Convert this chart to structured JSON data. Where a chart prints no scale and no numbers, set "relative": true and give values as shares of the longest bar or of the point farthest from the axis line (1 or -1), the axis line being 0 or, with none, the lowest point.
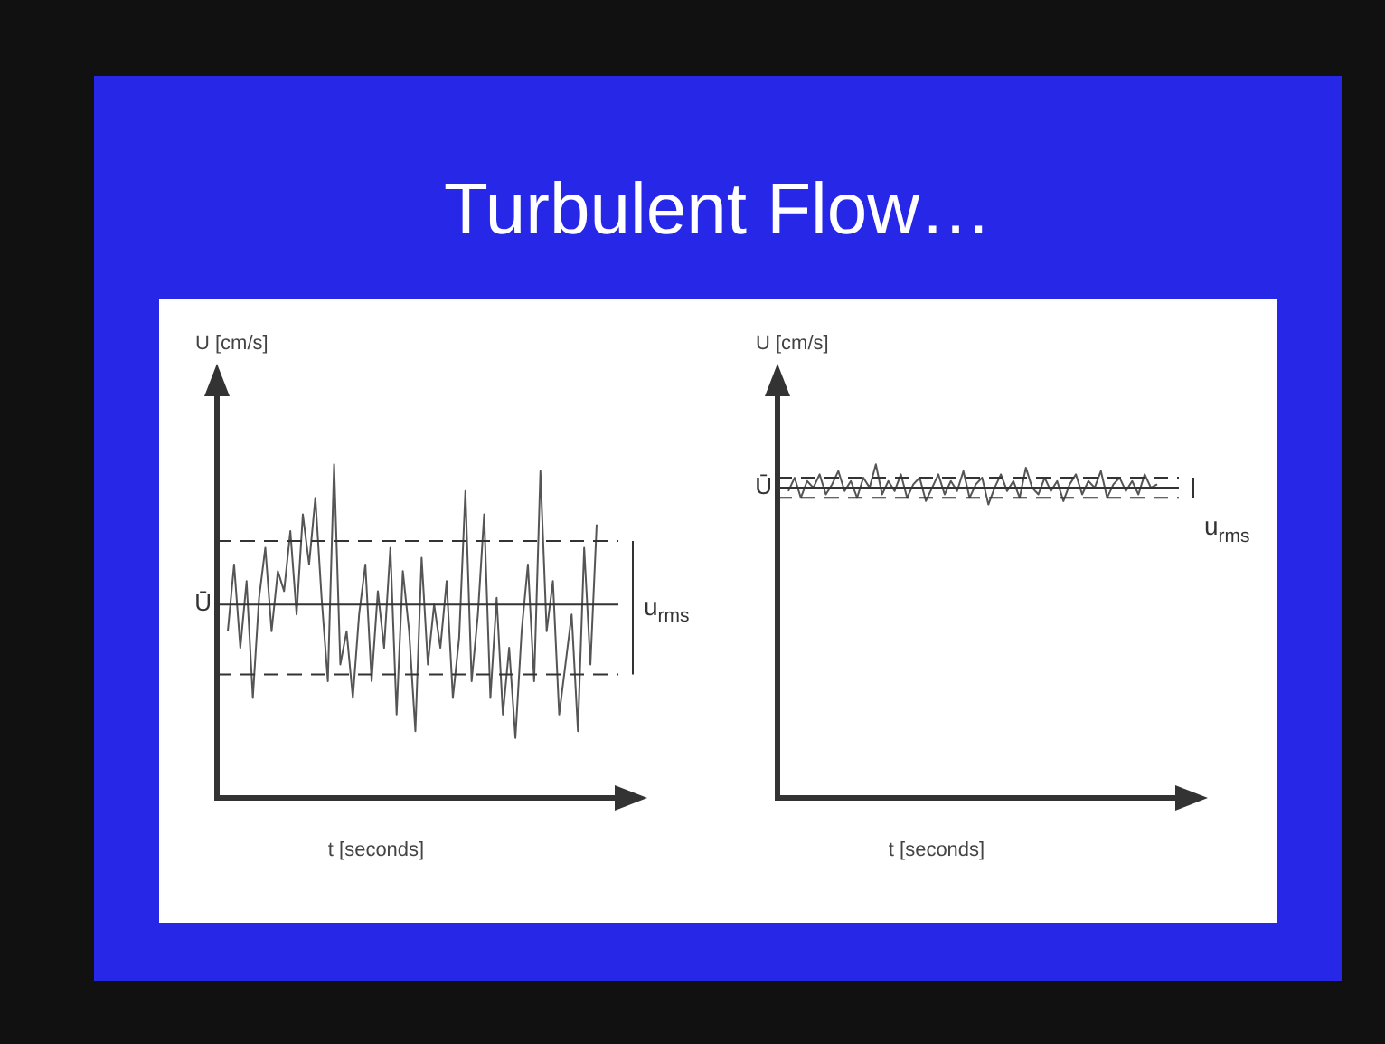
{
  "chart_data": [
    {
      "type": "line",
      "title": "Turbulent Flow…",
      "xlabel": "t [seconds]",
      "ylabel": "U [cm/s]",
      "relative": true,
      "color": "#555555",
      "categories": [
        null,
        null,
        null,
        null,
        null,
        null,
        null,
        null,
        null,
        null,
        null,
        null,
        null,
        null,
        null,
        null,
        null,
        null,
        null,
        null,
        null,
        null,
        null,
        null,
        null,
        null,
        null,
        null,
        null,
        null,
        null,
        null,
        null,
        null,
        null,
        null,
        null,
        null,
        null,
        null,
        null,
        null,
        null,
        null,
        null,
        null,
        null,
        null,
        null,
        null,
        null,
        null,
        null,
        null,
        null,
        null,
        null,
        null,
        null,
        null
      ],
      "values": [
        0.5,
        0.7,
        0.45,
        0.65,
        0.3,
        0.6,
        0.75,
        0.5,
        0.68,
        0.62,
        0.8,
        0.55,
        0.85,
        0.7,
        0.9,
        0.6,
        0.35,
        1.0,
        0.4,
        0.5,
        0.3,
        0.55,
        0.7,
        0.35,
        0.62,
        0.45,
        0.75,
        0.25,
        0.68,
        0.5,
        0.2,
        0.72,
        0.4,
        0.58,
        0.45,
        0.65,
        0.3,
        0.48,
        0.92,
        0.35,
        0.55,
        0.85,
        0.3,
        0.6,
        0.25,
        0.45,
        0.18,
        0.5,
        0.7,
        0.35,
        0.98,
        0.5,
        0.65,
        0.25,
        0.4,
        0.55,
        0.2,
        0.75,
        0.4,
        0.82
      ],
      "ref_lines": [
        {
          "axis": "y",
          "value": 0.58,
          "label": "Ū",
          "line_style": "solid"
        },
        {
          "axis": "y",
          "value": 0.77,
          "line_style": "dashed"
        },
        {
          "axis": "y",
          "value": 0.37,
          "line_style": "dashed"
        }
      ],
      "annotations": [
        "u$_{rms}$"
      ]
    },
    {
      "type": "line",
      "xlabel": "t [seconds]",
      "ylabel": "U [cm/s]",
      "relative": true,
      "color": "#555555",
      "categories": [
        null,
        null,
        null,
        null,
        null,
        null,
        null,
        null,
        null,
        null,
        null,
        null,
        null,
        null,
        null,
        null,
        null,
        null,
        null,
        null,
        null,
        null,
        null,
        null,
        null,
        null,
        null,
        null,
        null,
        null,
        null,
        null,
        null,
        null,
        null,
        null,
        null,
        null,
        null,
        null,
        null,
        null,
        null,
        null,
        null,
        null,
        null,
        null,
        null,
        null,
        null,
        null,
        null,
        null,
        null,
        null,
        null,
        null,
        null,
        null
      ],
      "values": [
        0.92,
        0.96,
        0.9,
        0.95,
        0.93,
        0.97,
        0.91,
        0.94,
        0.98,
        0.92,
        0.95,
        0.9,
        0.96,
        0.93,
        1.0,
        0.91,
        0.95,
        0.92,
        0.97,
        0.9,
        0.94,
        0.96,
        0.89,
        0.93,
        0.97,
        0.91,
        0.95,
        0.92,
        0.98,
        0.9,
        0.94,
        0.96,
        0.88,
        0.93,
        0.97,
        0.92,
        0.95,
        0.9,
        0.99,
        0.93,
        0.91,
        0.96,
        0.92,
        0.95,
        0.89,
        0.94,
        0.97,
        0.91,
        0.95,
        0.93,
        0.98,
        0.9,
        0.94,
        0.96,
        0.92,
        0.95,
        0.91,
        0.97,
        0.93,
        0.94
      ],
      "ref_lines": [
        {
          "axis": "y",
          "value": 0.93,
          "label": "Ū",
          "line_style": "solid"
        },
        {
          "axis": "y",
          "value": 0.96,
          "line_style": "dashed"
        },
        {
          "axis": "y",
          "value": 0.9,
          "line_style": "dashed"
        }
      ],
      "annotations": [
        "u$_{rms}$"
      ]
    }
  ]
}
